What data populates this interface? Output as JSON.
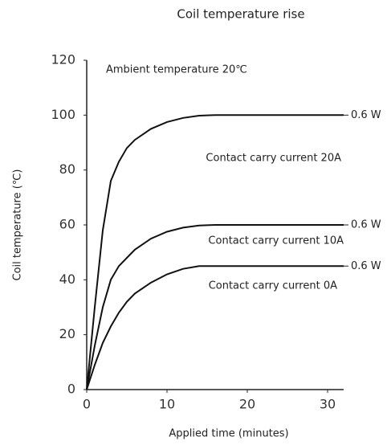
{
  "chart_data": {
    "type": "line",
    "title": "Coil temperature rise",
    "x_label": "Applied time (minutes)",
    "y_label": "Coil temperature (℃)",
    "annotation": "Ambient temperature 20℃",
    "x": [
      0,
      1,
      2,
      3,
      4,
      5,
      6,
      8,
      10,
      12,
      14,
      16,
      20,
      25,
      32
    ],
    "series": [
      {
        "name": "Contact carry current 20A",
        "color": "#111111",
        "end_label": "0.6 W",
        "values": [
          0,
          30,
          58,
          76,
          83,
          88,
          91,
          95,
          97.5,
          99,
          99.8,
          100,
          100,
          100,
          100
        ]
      },
      {
        "name": "Contact carry current 10A",
        "color": "#111111",
        "end_label": "0.6 W",
        "values": [
          0,
          16,
          30,
          40,
          45,
          48,
          51,
          55,
          57.5,
          59,
          59.8,
          60,
          60,
          60,
          60
        ]
      },
      {
        "name": "Contact carry current 0A",
        "color": "#111111",
        "end_label": "0.6 W",
        "values": [
          0,
          9,
          17,
          23,
          28,
          32,
          35,
          39,
          42,
          44,
          45,
          45,
          45,
          45,
          45
        ]
      }
    ],
    "xlim": [
      0,
      32
    ],
    "xticks": [
      0,
      10,
      20,
      30
    ],
    "ylim": [
      0,
      120
    ],
    "yticks": [
      0,
      20,
      40,
      60,
      80,
      100,
      120
    ],
    "grid": false
  }
}
